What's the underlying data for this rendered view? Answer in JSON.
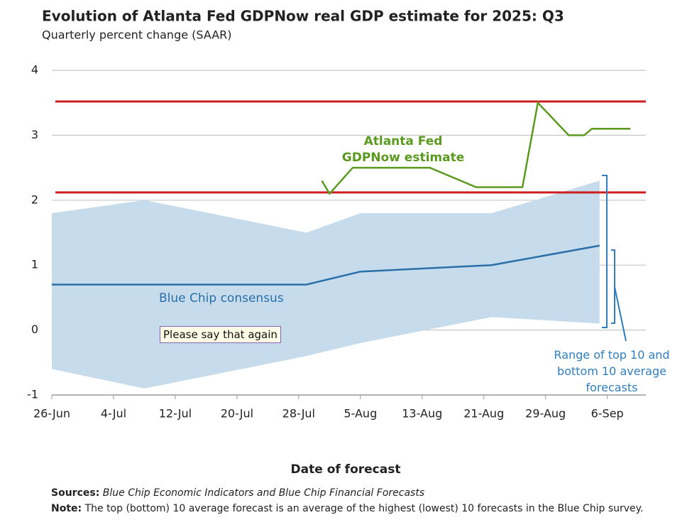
{
  "chart_data": {
    "type": "line",
    "title": "Evolution of Atlanta Fed GDPNow real GDP estimate for 2025: Q3",
    "subtitle": "Quarterly percent change (SAAR)",
    "x_label": "Date of forecast",
    "xlim": [
      "26-Jun",
      "11-Sep"
    ],
    "xticks": [
      "26-Jun",
      "4-Jul",
      "12-Jul",
      "20-Jul",
      "28-Jul",
      "5-Aug",
      "13-Aug",
      "21-Aug",
      "29-Aug",
      "6-Sep"
    ],
    "ylim": [
      -1,
      4
    ],
    "yticks": [
      -1,
      0,
      1,
      2,
      3,
      4
    ],
    "grid": true,
    "reference_lines": [
      {
        "value": 3.52,
        "color": "#cc1f1f"
      },
      {
        "value": 2.12,
        "color": "#cc1f1f"
      }
    ],
    "band": {
      "name": "Range of top 10 and bottom 10 average forecasts",
      "color": "#c6dcec",
      "x": [
        "26-Jun",
        "8-Jul",
        "29-Jul",
        "5-Aug",
        "22-Aug",
        "5-Sep"
      ],
      "upper": [
        1.8,
        2.0,
        1.5,
        1.8,
        1.8,
        2.3
      ],
      "lower": [
        -0.6,
        -0.9,
        -0.4,
        -0.2,
        0.2,
        0.1
      ]
    },
    "series": [
      {
        "name": "Atlanta Fed GDPNow estimate",
        "color": "#5a9a1e",
        "x": [
          "31-Jul",
          "1-Aug",
          "4-Aug",
          "14-Aug",
          "20-Aug",
          "26-Aug",
          "28-Aug",
          "1-Sep",
          "3-Sep",
          "4-Sep",
          "9-Sep"
        ],
        "values": [
          2.3,
          2.1,
          2.5,
          2.5,
          2.2,
          2.2,
          3.5,
          3.0,
          3.0,
          3.1,
          3.1
        ]
      },
      {
        "name": "Blue Chip consensus",
        "color": "#2a6fa8",
        "x": [
          "26-Jun",
          "29-Jul",
          "5-Aug",
          "22-Aug",
          "5-Sep"
        ],
        "values": [
          0.7,
          0.7,
          0.9,
          1.0,
          1.3
        ]
      }
    ],
    "tooltip": "Please say that again",
    "footnotes": {
      "sources_label": "Sources:",
      "sources": "Blue Chip Economic Indicators and Blue Chip Financial Forecasts",
      "note_label": "Note:",
      "note": "The top (bottom) 10 average forecast is an average of the highest (lowest) 10 forecasts in the Blue Chip survey."
    }
  }
}
